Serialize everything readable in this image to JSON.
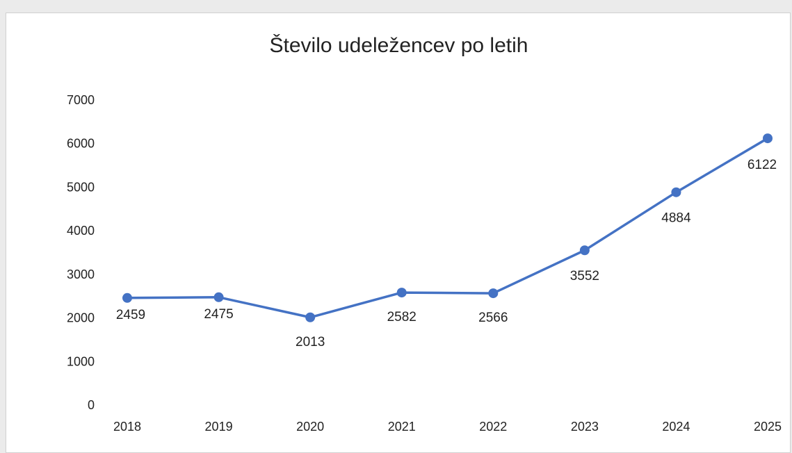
{
  "chart_data": {
    "type": "line",
    "title": "Število udeležencev po letih",
    "xlabel": "",
    "ylabel": "",
    "categories": [
      "2018",
      "2019",
      "2020",
      "2021",
      "2022",
      "2023",
      "2024",
      "2025"
    ],
    "series": [
      {
        "values": [
          2459,
          2475,
          2013,
          2582,
          2566,
          3552,
          4884,
          6122
        ]
      }
    ],
    "ylim": [
      0,
      7000
    ],
    "yticks": [
      0,
      1000,
      2000,
      3000,
      4000,
      5000,
      6000,
      7000
    ],
    "grid": false,
    "legend": "none",
    "line_color": "#4472c4"
  }
}
